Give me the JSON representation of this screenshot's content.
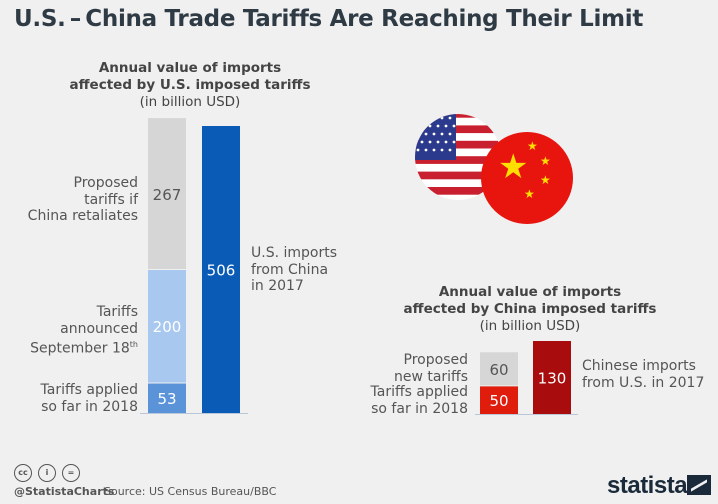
{
  "title": "U.S. – China Trade Tariffs Are Reaching Their Limit",
  "chart_data": [
    {
      "type": "bar",
      "title": "Annual value of imports affected by U.S. imposed tariffs",
      "title_line1": "Annual value of imports",
      "title_line2": "affected by U.S. imposed tariffs",
      "unit": "(in billion USD)",
      "stacked_bar": [
        {
          "label": "Tariffs applied so far in 2018",
          "label_lines": [
            "Tariffs applied",
            "so far in 2018"
          ],
          "value": 53,
          "color": "#5b93d9"
        },
        {
          "label": "Tariffs announced September 18th",
          "label_lines": [
            "Tariffs",
            "announced",
            "September 18"
          ],
          "sup": "th",
          "value": 200,
          "color": "#a8c8f0"
        },
        {
          "label": "Proposed tariffs if China retaliates",
          "label_lines": [
            "Proposed",
            "tariffs if",
            "China retaliates"
          ],
          "value": 267,
          "color": "#d6d6d6"
        }
      ],
      "total_bar": {
        "label": "U.S. imports from China in 2017",
        "label_lines": [
          "U.S. imports",
          "from China",
          "in 2017"
        ],
        "value": 506,
        "color": "#0a5bb5"
      }
    },
    {
      "type": "bar",
      "title": "Annual value of imports affected by China imposed tariffs",
      "title_line1": "Annual value of imports",
      "title_line2": "affected by China imposed tariffs",
      "unit": "(in billion USD)",
      "stacked_bar": [
        {
          "label": "Tariffs applied so far in 2018",
          "label_lines": [
            "Tariffs applied",
            "so far in 2018"
          ],
          "value": 50,
          "color": "#e01c0c"
        },
        {
          "label": "Proposed new tariffs",
          "label_lines": [
            "Proposed",
            "new tariffs"
          ],
          "value": 60,
          "color": "#d6d6d6"
        }
      ],
      "total_bar": {
        "label": "Chinese imports from U.S. in 2017",
        "label_lines": [
          "Chinese imports",
          "from U.S. in 2017"
        ],
        "value": 130,
        "color": "#a80c0c"
      }
    }
  ],
  "footer": {
    "handle": "@StatistaCharts",
    "source": "Source: US Census Bureau/BBC",
    "license_icons": [
      "cc",
      "by",
      "nd"
    ],
    "logo": "statista"
  }
}
